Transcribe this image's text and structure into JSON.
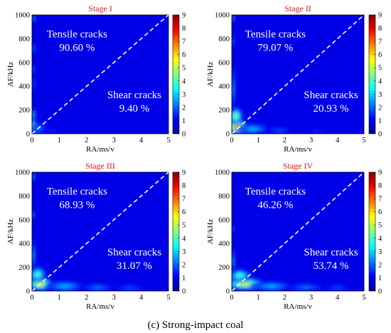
{
  "caption": "(c) Strong-impact coal",
  "chart_data": [
    {
      "type": "heatmap",
      "title": "Stage I",
      "xlabel": "RA/ms/v",
      "ylabel": "AF/kHz",
      "xlim": [
        0,
        5
      ],
      "ylim": [
        0,
        1000
      ],
      "xticks": [
        "0",
        "1",
        "2",
        "3",
        "4",
        "5"
      ],
      "yticks": [
        "0",
        "200",
        "400",
        "600",
        "800",
        "1000"
      ],
      "colorbar": {
        "min": 0,
        "max": 9,
        "ticks": [
          "0",
          "1",
          "2",
          "3",
          "4",
          "5",
          "6",
          "7",
          "8",
          "9"
        ]
      },
      "divider": {
        "from": [
          0,
          0
        ],
        "to": [
          5,
          1000
        ],
        "style": "dashed",
        "color": "#ffffff"
      },
      "annotations": [
        {
          "label": "Tensile cracks",
          "value": "90.60 %",
          "region": "upper-left"
        },
        {
          "label": "Shear cracks",
          "value": "9.40 %",
          "region": "lower-right"
        }
      ],
      "hotspots": [
        {
          "x": 0.05,
          "y": 60,
          "rx": 0.12,
          "ry": 70,
          "level": 5
        },
        {
          "x": 0.05,
          "y": 160,
          "rx": 0.06,
          "ry": 60,
          "level": 4
        },
        {
          "x": 0.06,
          "y": 970,
          "rx": 0.06,
          "ry": 20,
          "level": 4
        },
        {
          "x": 0.06,
          "y": 720,
          "rx": 0.05,
          "ry": 50,
          "level": 2.5
        },
        {
          "x": 0.06,
          "y": 540,
          "rx": 0.04,
          "ry": 40,
          "level": 2.5
        },
        {
          "x": 0.07,
          "y": 420,
          "rx": 0.05,
          "ry": 80,
          "level": 2
        },
        {
          "x": 0.25,
          "y": 40,
          "rx": 0.28,
          "ry": 45,
          "level": 2.5
        },
        {
          "x": 0.7,
          "y": 20,
          "rx": 0.45,
          "ry": 20,
          "level": 1.5
        }
      ]
    },
    {
      "type": "heatmap",
      "title": "Stage II",
      "xlabel": "RA/ms/v",
      "ylabel": "AF/kHz",
      "xlim": [
        0,
        5
      ],
      "ylim": [
        0,
        1000
      ],
      "xticks": [
        "0",
        "1",
        "2",
        "3",
        "4",
        "5"
      ],
      "yticks": [
        "0",
        "200",
        "400",
        "600",
        "800",
        "1000"
      ],
      "colorbar": {
        "min": 0,
        "max": 9,
        "ticks": [
          "0",
          "1",
          "2",
          "3",
          "4",
          "5",
          "6",
          "7",
          "8",
          "9"
        ]
      },
      "divider": {
        "from": [
          0,
          0
        ],
        "to": [
          5,
          1000
        ],
        "style": "dashed",
        "color": "#ffffff"
      },
      "annotations": [
        {
          "label": "Tensile cracks",
          "value": "79.07 %",
          "region": "upper-left"
        },
        {
          "label": "Shear cracks",
          "value": "20.93 %",
          "region": "lower-right"
        }
      ],
      "hotspots": [
        {
          "x": 0.2,
          "y": 60,
          "rx": 0.35,
          "ry": 60,
          "level": 7.5
        },
        {
          "x": 0.15,
          "y": 150,
          "rx": 0.25,
          "ry": 70,
          "level": 5
        },
        {
          "x": 0.05,
          "y": 380,
          "rx": 0.06,
          "ry": 200,
          "level": 3
        },
        {
          "x": 0.05,
          "y": 970,
          "rx": 0.05,
          "ry": 20,
          "level": 5
        },
        {
          "x": 0.05,
          "y": 780,
          "rx": 0.04,
          "ry": 60,
          "level": 2.5
        },
        {
          "x": 0.8,
          "y": 40,
          "rx": 0.6,
          "ry": 40,
          "level": 3
        },
        {
          "x": 1.8,
          "y": 25,
          "rx": 0.5,
          "ry": 25,
          "level": 2
        },
        {
          "x": 3.2,
          "y": 20,
          "rx": 0.5,
          "ry": 20,
          "level": 1.5
        }
      ]
    },
    {
      "type": "heatmap",
      "title": "Stage III",
      "xlabel": "RA/ms/v",
      "ylabel": "AF/kHz",
      "xlim": [
        0,
        5
      ],
      "ylim": [
        0,
        1000
      ],
      "xticks": [
        "0",
        "1",
        "2",
        "3",
        "4",
        "5"
      ],
      "yticks": [
        "0",
        "200",
        "400",
        "600",
        "800",
        "1000"
      ],
      "colorbar": {
        "min": 0,
        "max": 9,
        "ticks": [
          "0",
          "1",
          "2",
          "3",
          "4",
          "5",
          "6",
          "7",
          "8",
          "9"
        ]
      },
      "divider": {
        "from": [
          0,
          0
        ],
        "to": [
          5,
          1000
        ],
        "style": "dashed",
        "color": "#ffffff"
      },
      "annotations": [
        {
          "label": "Tensile cracks",
          "value": "68.93 %",
          "region": "upper-left"
        },
        {
          "label": "Shear cracks",
          "value": "31.07 %",
          "region": "lower-right"
        }
      ],
      "hotspots": [
        {
          "x": 0.3,
          "y": 60,
          "rx": 0.45,
          "ry": 55,
          "level": 6
        },
        {
          "x": 0.2,
          "y": 140,
          "rx": 0.3,
          "ry": 60,
          "level": 4.5
        },
        {
          "x": 0.05,
          "y": 300,
          "rx": 0.06,
          "ry": 150,
          "level": 3
        },
        {
          "x": 0.05,
          "y": 640,
          "rx": 0.04,
          "ry": 40,
          "level": 3
        },
        {
          "x": 0.05,
          "y": 960,
          "rx": 0.05,
          "ry": 30,
          "level": 3.5
        },
        {
          "x": 1.2,
          "y": 40,
          "rx": 0.7,
          "ry": 40,
          "level": 3
        },
        {
          "x": 2.4,
          "y": 30,
          "rx": 0.6,
          "ry": 25,
          "level": 2.5
        },
        {
          "x": 3.6,
          "y": 25,
          "rx": 0.6,
          "ry": 25,
          "level": 2
        }
      ]
    },
    {
      "type": "heatmap",
      "title": "Stage IV",
      "xlabel": "RA/ms/v",
      "ylabel": "AF/kHz",
      "xlim": [
        0,
        5
      ],
      "ylim": [
        0,
        1000
      ],
      "xticks": [
        "0",
        "1",
        "2",
        "3",
        "4",
        "5"
      ],
      "yticks": [
        "0",
        "200",
        "400",
        "600",
        "800",
        "1000"
      ],
      "colorbar": {
        "min": 0,
        "max": 9,
        "ticks": [
          "0",
          "1",
          "2",
          "3",
          "4",
          "5",
          "6",
          "7",
          "8",
          "9"
        ]
      },
      "divider": {
        "from": [
          0,
          0
        ],
        "to": [
          5,
          1000
        ],
        "style": "dashed",
        "color": "#ffffff"
      },
      "annotations": [
        {
          "label": "Tensile cracks",
          "value": "46.26 %",
          "region": "upper-left"
        },
        {
          "label": "Shear cracks",
          "value": "53.74 %",
          "region": "lower-right"
        }
      ],
      "hotspots": [
        {
          "x": 0.5,
          "y": 60,
          "rx": 0.7,
          "ry": 50,
          "level": 6
        },
        {
          "x": 0.3,
          "y": 130,
          "rx": 0.4,
          "ry": 50,
          "level": 4.5
        },
        {
          "x": 0.05,
          "y": 250,
          "rx": 0.06,
          "ry": 120,
          "level": 3
        },
        {
          "x": 0.05,
          "y": 520,
          "rx": 0.04,
          "ry": 30,
          "level": 2.5
        },
        {
          "x": 1.5,
          "y": 40,
          "rx": 0.8,
          "ry": 35,
          "level": 3
        },
        {
          "x": 2.8,
          "y": 30,
          "rx": 0.7,
          "ry": 25,
          "level": 2.5
        },
        {
          "x": 4.0,
          "y": 25,
          "rx": 0.5,
          "ry": 25,
          "level": 2
        }
      ]
    }
  ]
}
